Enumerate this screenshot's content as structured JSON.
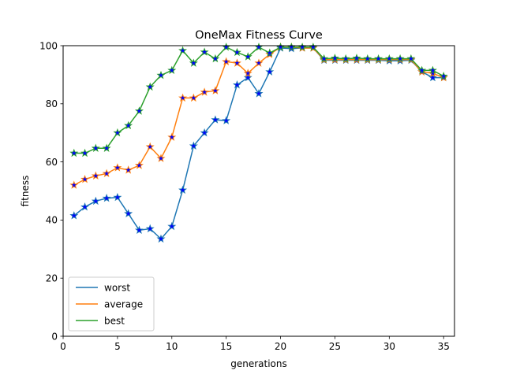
{
  "chart_data": {
    "type": "line",
    "title": "OneMax Fitness Curve",
    "xlabel": "generations",
    "ylabel": "fitness",
    "xlim": [
      0,
      36
    ],
    "ylim": [
      0,
      100
    ],
    "xticks": [
      0,
      5,
      10,
      15,
      20,
      25,
      30,
      35
    ],
    "yticks": [
      0,
      20,
      40,
      60,
      80,
      100
    ],
    "grid": false,
    "legend_position": "lower-left",
    "marker": "star",
    "marker_color": "#0000ff",
    "x": [
      1,
      2,
      3,
      4,
      5,
      6,
      7,
      8,
      9,
      10,
      11,
      12,
      13,
      14,
      15,
      16,
      17,
      18,
      19,
      20,
      21,
      22,
      23,
      24,
      25,
      26,
      27,
      28,
      29,
      30,
      31,
      32,
      33,
      34,
      35
    ],
    "series": [
      {
        "name": "worst",
        "color": "#1f77b4",
        "values": [
          41.5,
          44.5,
          46.5,
          47.5,
          47.8,
          42.2,
          36.5,
          37.0,
          33.5,
          37.8,
          50.3,
          65.5,
          70.0,
          74.5,
          74.2,
          86.5,
          89.0,
          83.5,
          91.0,
          99.2,
          99.0,
          99.2,
          99.2,
          95.0,
          95.0,
          95.0,
          95.0,
          95.0,
          95.0,
          94.8,
          94.8,
          95.0,
          91.0,
          89.0,
          89.0
        ]
      },
      {
        "name": "average",
        "color": "#ff7f0e",
        "values": [
          52.0,
          54.0,
          55.2,
          56.0,
          58.0,
          57.2,
          58.8,
          65.2,
          61.2,
          68.5,
          82.0,
          82.0,
          84.0,
          84.5,
          94.5,
          94.0,
          90.5,
          94.0,
          97.0,
          99.5,
          99.5,
          99.2,
          99.2,
          95.2,
          95.2,
          95.2,
          95.2,
          95.2,
          95.2,
          95.2,
          95.2,
          95.2,
          91.0,
          90.5,
          89.0
        ]
      },
      {
        "name": "best",
        "color": "#2ca02c",
        "values": [
          63.0,
          63.0,
          64.7,
          64.7,
          70.0,
          72.5,
          77.5,
          85.8,
          89.8,
          91.5,
          98.3,
          94.0,
          97.8,
          95.5,
          99.5,
          97.7,
          96.2,
          99.5,
          97.5,
          99.5,
          99.5,
          99.5,
          99.5,
          95.5,
          95.7,
          95.5,
          95.7,
          95.5,
          95.5,
          95.5,
          95.5,
          95.5,
          91.5,
          91.5,
          89.5
        ]
      }
    ]
  }
}
